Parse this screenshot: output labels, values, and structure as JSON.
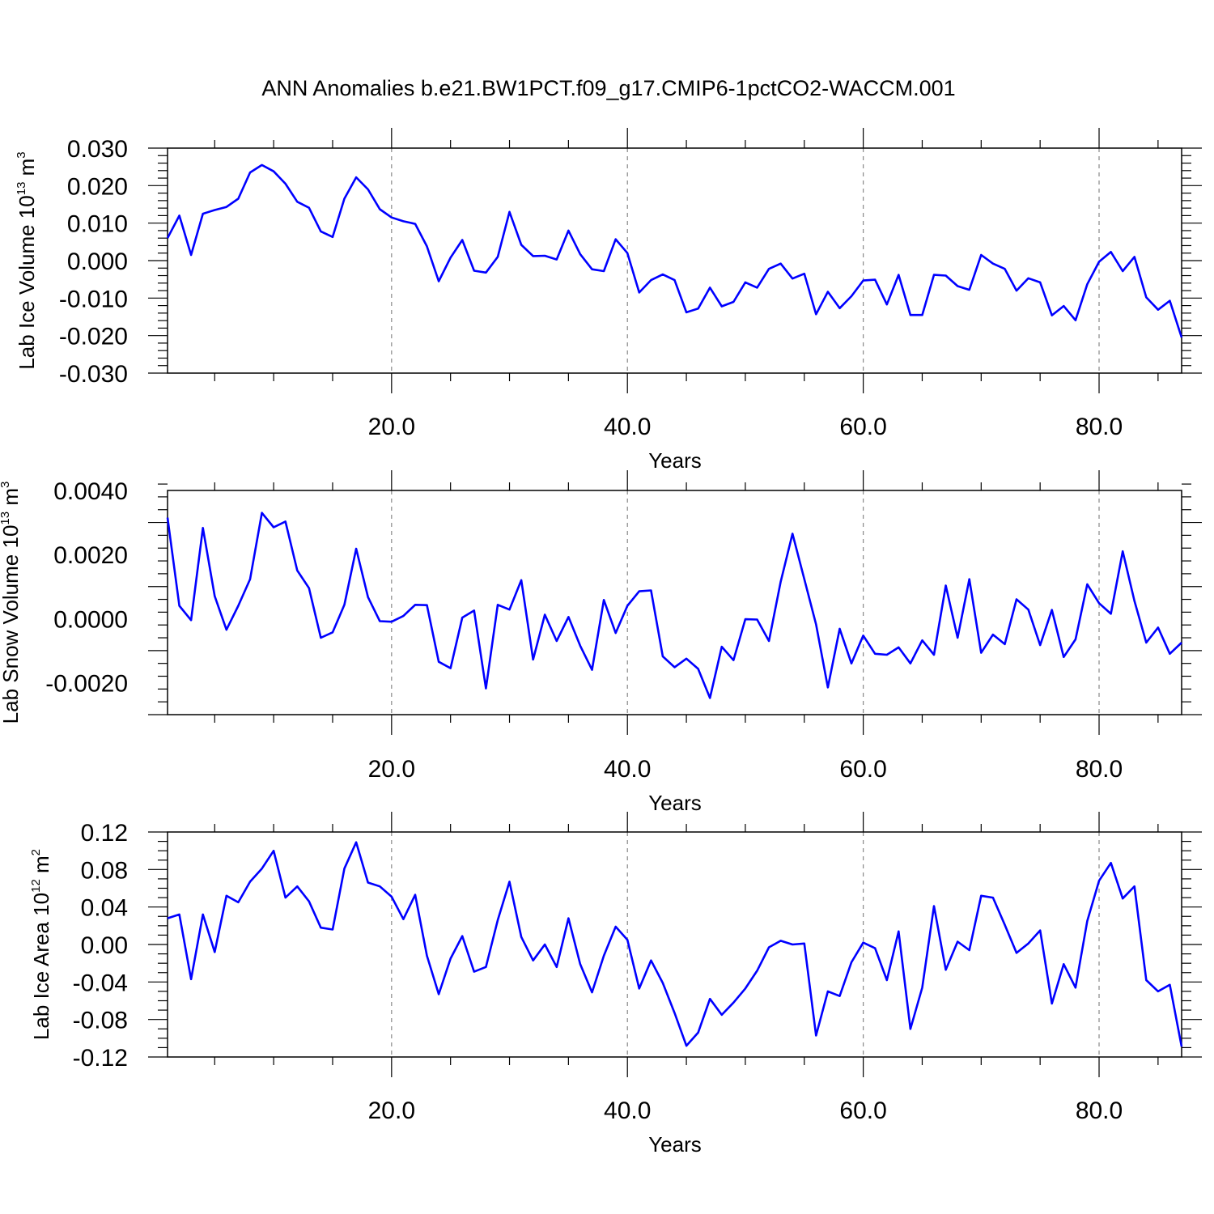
{
  "title": "ANN Anomalies b.e21.BW1PCT.f09_g17.CMIP6-1pctCO2-WACCM.001",
  "colors": {
    "line": "#0000ff",
    "axes": "#000000",
    "grid": "#888888"
  },
  "chart_data": [
    {
      "type": "line",
      "xlabel": "Years",
      "ylabel": {
        "text": "Lab Ice Volume 10",
        "sup_exp": "13",
        "unit": " m",
        "sup_unit": "3"
      },
      "xlim": [
        1,
        87
      ],
      "ylim": [
        -0.03,
        0.03
      ],
      "x_ticks": [
        "20.0",
        "40.0",
        "60.0",
        "80.0"
      ],
      "y_ticks": [
        "0.030",
        "0.020",
        "0.010",
        "0.000",
        "-0.010",
        "-0.020",
        "-0.030"
      ],
      "grid": "vertical dashed at x ticks",
      "series": [
        {
          "values": [
            0.006,
            0.012,
            0.0015,
            0.0125,
            0.0135,
            0.0143,
            0.0165,
            0.0235,
            0.0255,
            0.0238,
            0.0205,
            0.0157,
            0.0141,
            0.0078,
            0.0063,
            0.0165,
            0.0222,
            0.019,
            0.0137,
            0.0115,
            0.0105,
            0.0098,
            0.0038,
            -0.0055,
            0.0008,
            0.0055,
            -0.0027,
            -0.0032,
            0.001,
            0.013,
            0.0042,
            0.0012,
            0.0013,
            0.0003,
            0.008,
            0.0017,
            -0.0023,
            -0.0028,
            0.0057,
            0.002,
            -0.0085,
            -0.0052,
            -0.0037,
            -0.0052,
            -0.0138,
            -0.0128,
            -0.0072,
            -0.0122,
            -0.011,
            -0.0058,
            -0.0072,
            -0.0022,
            -0.0008,
            -0.0048,
            -0.0035,
            -0.0143,
            -0.0083,
            -0.0127,
            -0.0095,
            -0.0053,
            -0.0051,
            -0.0117,
            -0.0038,
            -0.0145,
            -0.0145,
            -0.0038,
            -0.004,
            -0.0068,
            -0.0078,
            0.0015,
            -0.0008,
            -0.0022,
            -0.008,
            -0.0047,
            -0.0058,
            -0.0146,
            -0.0121,
            -0.0159,
            -0.0063,
            -0.0003,
            0.0023,
            -0.0028,
            0.001,
            -0.0098,
            -0.0131,
            -0.0107,
            -0.0205
          ]
        }
      ]
    },
    {
      "type": "line",
      "xlabel": "Years",
      "ylabel": {
        "text": "Lab Snow Volume 10",
        "sup_exp": "13",
        "unit": " m",
        "sup_unit": "3"
      },
      "xlim": [
        1,
        87
      ],
      "ylim": [
        -0.003,
        0.004
      ],
      "x_ticks": [
        "20.0",
        "40.0",
        "60.0",
        "80.0"
      ],
      "y_ticks": [
        "0.0040",
        "0.0020",
        "0.0000",
        "-0.0020"
      ],
      "grid": "vertical dashed at x ticks",
      "series": [
        {
          "values": [
            0.00315,
            0.0004,
            -5e-05,
            0.00283,
            0.0007,
            -0.00035,
            0.0004,
            0.00123,
            0.0033,
            0.00285,
            0.00303,
            0.0015,
            0.00095,
            -0.0006,
            -0.00043,
            0.00043,
            0.00218,
            0.00067,
            -8e-05,
            -0.0001,
            8e-05,
            0.00043,
            0.00042,
            -0.00135,
            -0.00155,
            3e-05,
            0.00025,
            -0.00218,
            0.00043,
            0.00028,
            0.0012,
            -0.00128,
            0.00012,
            -0.0007,
            5e-05,
            -0.00085,
            -0.0016,
            0.00058,
            -0.00045,
            0.0004,
            0.00085,
            0.00088,
            -0.00118,
            -0.00152,
            -0.00125,
            -0.00157,
            -0.00248,
            -0.00088,
            -0.0013,
            -2e-05,
            -3e-05,
            -0.0007,
            0.00115,
            0.00265,
            0.00123,
            -0.00018,
            -0.00215,
            -0.00032,
            -0.0014,
            -0.00053,
            -0.0011,
            -0.00113,
            -0.0009,
            -0.0014,
            -0.00068,
            -0.00113,
            0.00103,
            -0.0006,
            0.00123,
            -0.00107,
            -0.0005,
            -0.0008,
            0.0006,
            0.00028,
            -0.00083,
            0.00027,
            -0.0012,
            -0.00065,
            0.00107,
            0.00048,
            0.00015,
            0.0021,
            0.00055,
            -0.00075,
            -0.00028,
            -0.0011,
            -0.00075
          ]
        }
      ]
    },
    {
      "type": "line",
      "xlabel": "Years",
      "ylabel": {
        "text": "Lab Ice Area 10",
        "sup_exp": "12",
        "unit": " m",
        "sup_unit": "2"
      },
      "xlim": [
        1,
        87
      ],
      "ylim": [
        -0.12,
        0.12
      ],
      "x_ticks": [
        "20.0",
        "40.0",
        "60.0",
        "80.0"
      ],
      "y_ticks": [
        "0.12",
        "0.08",
        "0.04",
        "0.00",
        "-0.04",
        "-0.08",
        "-0.12"
      ],
      "grid": "vertical dashed at x ticks",
      "series": [
        {
          "values": [
            0.028,
            0.032,
            -0.037,
            0.032,
            -0.008,
            0.052,
            0.045,
            0.067,
            0.081,
            0.1,
            0.05,
            0.062,
            0.046,
            0.018,
            0.016,
            0.081,
            0.109,
            0.066,
            0.062,
            0.051,
            0.027,
            0.053,
            -0.012,
            -0.053,
            -0.015,
            0.009,
            -0.029,
            -0.024,
            0.026,
            0.067,
            0.008,
            -0.017,
            0.0,
            -0.024,
            0.028,
            -0.021,
            -0.051,
            -0.012,
            0.019,
            0.005,
            -0.047,
            -0.017,
            -0.041,
            -0.073,
            -0.108,
            -0.094,
            -0.058,
            -0.075,
            -0.062,
            -0.047,
            -0.028,
            -0.003,
            0.004,
            0.0,
            0.001,
            -0.097,
            -0.05,
            -0.055,
            -0.019,
            0.002,
            -0.004,
            -0.038,
            0.014,
            -0.09,
            -0.046,
            0.041,
            -0.027,
            0.003,
            -0.006,
            0.052,
            0.05,
            0.021,
            -0.009,
            0.001,
            0.015,
            -0.063,
            -0.021,
            -0.046,
            0.025,
            0.068,
            0.087,
            0.049,
            0.062,
            -0.038,
            -0.05,
            -0.043,
            -0.109
          ]
        }
      ]
    }
  ]
}
